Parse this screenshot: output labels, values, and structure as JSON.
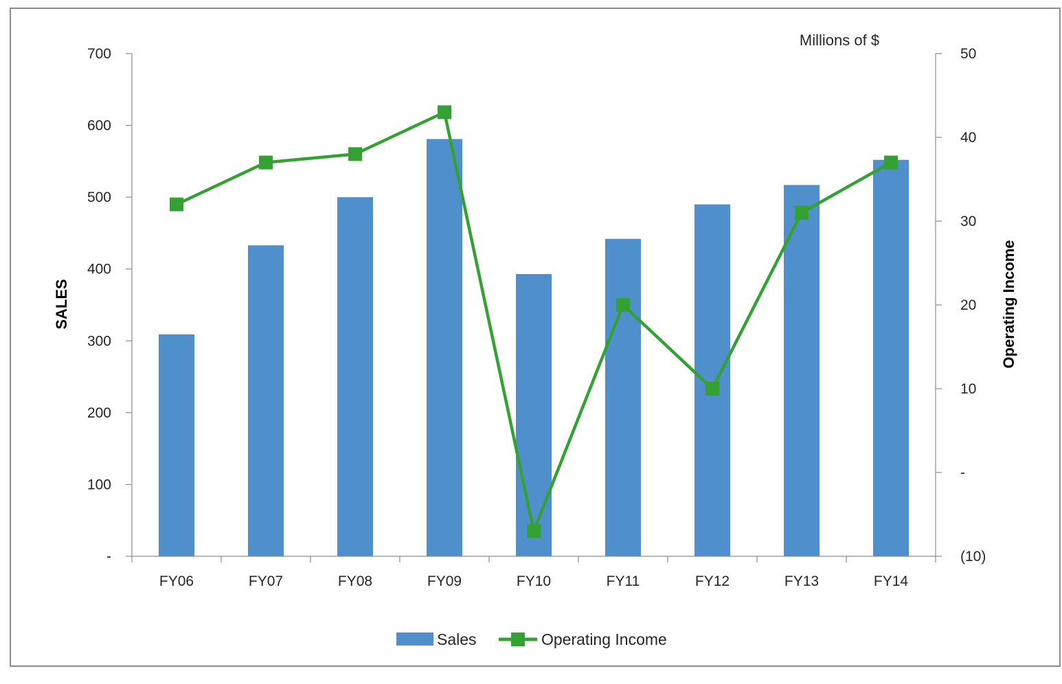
{
  "chart_data": {
    "type": "bar",
    "categories": [
      "FY06",
      "FY07",
      "FY08",
      "FY09",
      "FY10",
      "FY11",
      "FY12",
      "FY13",
      "FY14"
    ],
    "series": [
      {
        "name": "Sales",
        "type": "bar",
        "axis": "left",
        "color": "#4f8fcc",
        "values": [
          309,
          433,
          500,
          581,
          393,
          442,
          490,
          517,
          552
        ]
      },
      {
        "name": "Operating Income",
        "type": "line",
        "axis": "right",
        "color": "#34a133",
        "marker": "square",
        "values": [
          32,
          37,
          38,
          43,
          -7,
          20,
          10,
          31,
          37
        ]
      }
    ],
    "units_note": "Millions of $",
    "ylabel": "SALES",
    "ylim": [
      0,
      700
    ],
    "y_ticks": [
      0,
      100,
      200,
      300,
      400,
      500,
      600,
      700
    ],
    "y_tick_labels": [
      "-",
      "100",
      "200",
      "300",
      "400",
      "500",
      "600",
      "700"
    ],
    "y2label": "Operating Income",
    "y2lim": [
      -10,
      50
    ],
    "y2_ticks": [
      -10,
      0,
      10,
      20,
      30,
      40,
      50
    ],
    "y2_tick_labels": [
      "(10)",
      "-",
      "10",
      "20",
      "30",
      "40",
      "50"
    ],
    "grid": false,
    "legend_position": "bottom-center"
  }
}
